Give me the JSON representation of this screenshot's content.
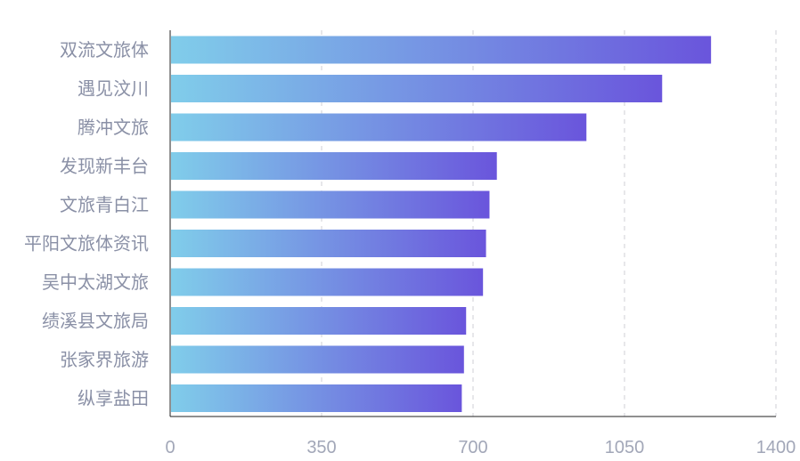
{
  "colors": {
    "bar_gradient_start": "#80cdea",
    "bar_gradient_end": "#6a55dc",
    "grid": "#cfcfd6",
    "axis": "#222222",
    "label": "#8a90a6",
    "tick_label": "#a2a7b8"
  },
  "chart_data": {
    "type": "bar",
    "orientation": "horizontal",
    "categories": [
      "双流文旅体",
      "遇见汶川",
      "腾冲文旅",
      "发现新丰台",
      "文旅青白江",
      "平阳文旅体资讯",
      "吴中太湖文旅",
      "绩溪县文旅局",
      "张家界旅游",
      "纵享盐田"
    ],
    "values": [
      1250,
      1137,
      962,
      755,
      738,
      730,
      723,
      684,
      679,
      674
    ],
    "xlim": [
      0,
      1400
    ],
    "xticks": [
      0,
      350,
      700,
      1050,
      1400
    ],
    "xtick_labels": [
      "0",
      "350",
      "700",
      "1050",
      "1400"
    ],
    "grid": "vertical dashed",
    "title": "",
    "xlabel": "",
    "ylabel": ""
  }
}
